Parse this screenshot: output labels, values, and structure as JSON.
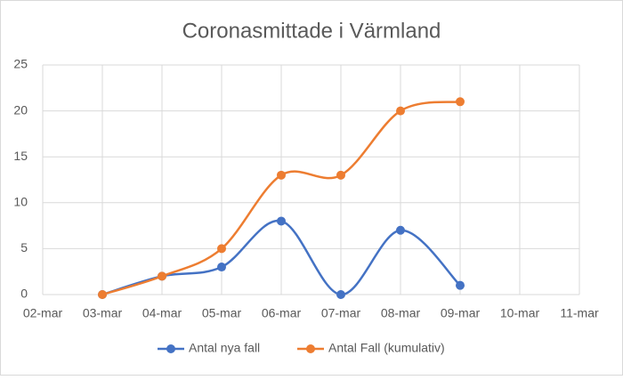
{
  "chart_data": {
    "type": "line",
    "title": "Coronasmittade i Värmland",
    "categories": [
      "02-mar",
      "03-mar",
      "04-mar",
      "05-mar",
      "06-mar",
      "07-mar",
      "08-mar",
      "09-mar",
      "10-mar",
      "11-mar"
    ],
    "series": [
      {
        "name": "Antal nya fall",
        "color": "#4472c4",
        "values": [
          null,
          0,
          2,
          3,
          8,
          0,
          7,
          1,
          null,
          null
        ]
      },
      {
        "name": "Antal Fall (kumulativ)",
        "color": "#ed7d31",
        "values": [
          null,
          0,
          2,
          5,
          13,
          13,
          20,
          21,
          null,
          null
        ]
      }
    ],
    "ylim": [
      0,
      25
    ],
    "yticks": [
      0,
      5,
      10,
      15,
      20,
      25
    ],
    "grid": true,
    "legend": "bottom"
  }
}
